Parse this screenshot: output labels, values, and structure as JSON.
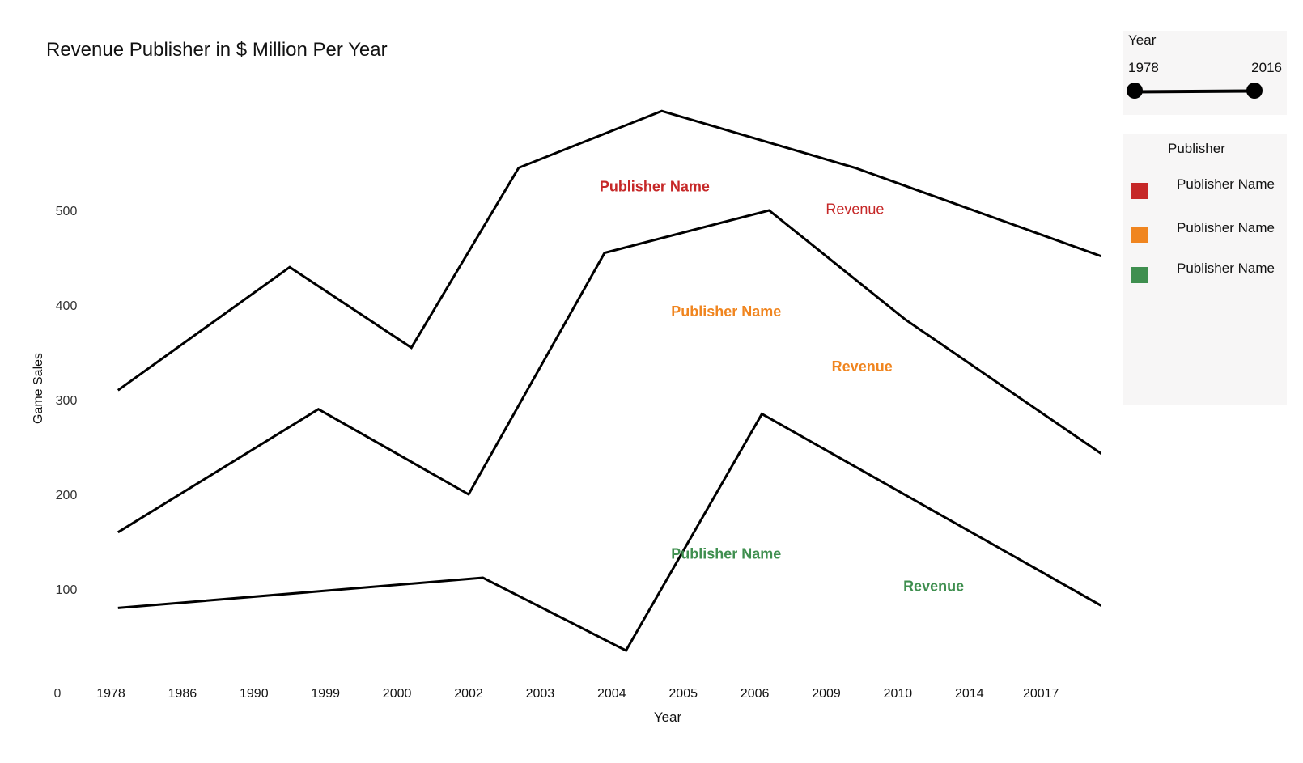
{
  "title": "Revenue Publisher in $ Million Per Year",
  "year_filter": {
    "label": "Year",
    "min": "1978",
    "max": "2016"
  },
  "legend": {
    "title": "Publisher",
    "items": [
      {
        "label": "Publisher Name",
        "color": "#c62828"
      },
      {
        "label": "Publisher Name",
        "color": "#f0851f"
      },
      {
        "label": "Publisher Name",
        "color": "#3f8f4f"
      }
    ]
  },
  "chart_data": {
    "type": "line",
    "xlabel": "Year",
    "ylabel": "Game Sales",
    "x_tick_labels": [
      "1978",
      "1986",
      "1990",
      "1999",
      "2000",
      "2002",
      "2003",
      "2004",
      "2005",
      "2006",
      "2009",
      "2010",
      "2014",
      "20017"
    ],
    "y_origin_label": "0",
    "y_ticks": [
      {
        "label": "500",
        "value": 500
      },
      {
        "label": "400",
        "value": 400
      },
      {
        "label": "300",
        "value": 300
      },
      {
        "label": "200",
        "value": 200
      },
      {
        "label": "100",
        "value": 100
      }
    ],
    "line_color": "#000000",
    "series": [
      {
        "name": "Publisher Name",
        "color": "#c62828",
        "points": [
          [
            0.1,
            310
          ],
          [
            2.5,
            440
          ],
          [
            4.2,
            355
          ],
          [
            5.7,
            545
          ],
          [
            7.7,
            605
          ],
          [
            10.4,
            545
          ],
          [
            13.9,
            450
          ]
        ],
        "labels": [
          {
            "text": "Publisher Name",
            "x": 7.6,
            "y": 520,
            "bold": true
          },
          {
            "text": "Revenue",
            "x": 10.4,
            "y": 496,
            "bold": false
          }
        ]
      },
      {
        "name": "Publisher Name",
        "color": "#f0851f",
        "points": [
          [
            0.1,
            160
          ],
          [
            2.9,
            290
          ],
          [
            5.0,
            200
          ],
          [
            6.9,
            455
          ],
          [
            9.2,
            500
          ],
          [
            11.1,
            385
          ],
          [
            13.9,
            240
          ]
        ],
        "labels": [
          {
            "text": "Publisher Name",
            "x": 8.6,
            "y": 388,
            "bold": true
          },
          {
            "text": "Revenue",
            "x": 10.5,
            "y": 330,
            "bold": true
          }
        ]
      },
      {
        "name": "Publisher Name",
        "color": "#3f8f4f",
        "points": [
          [
            0.1,
            80
          ],
          [
            5.2,
            112
          ],
          [
            7.2,
            35
          ],
          [
            9.1,
            285
          ],
          [
            13.9,
            80
          ]
        ],
        "labels": [
          {
            "text": "Publisher Name",
            "x": 8.6,
            "y": 132,
            "bold": true
          },
          {
            "text": "Revenue",
            "x": 11.5,
            "y": 98,
            "bold": true
          }
        ]
      }
    ]
  }
}
